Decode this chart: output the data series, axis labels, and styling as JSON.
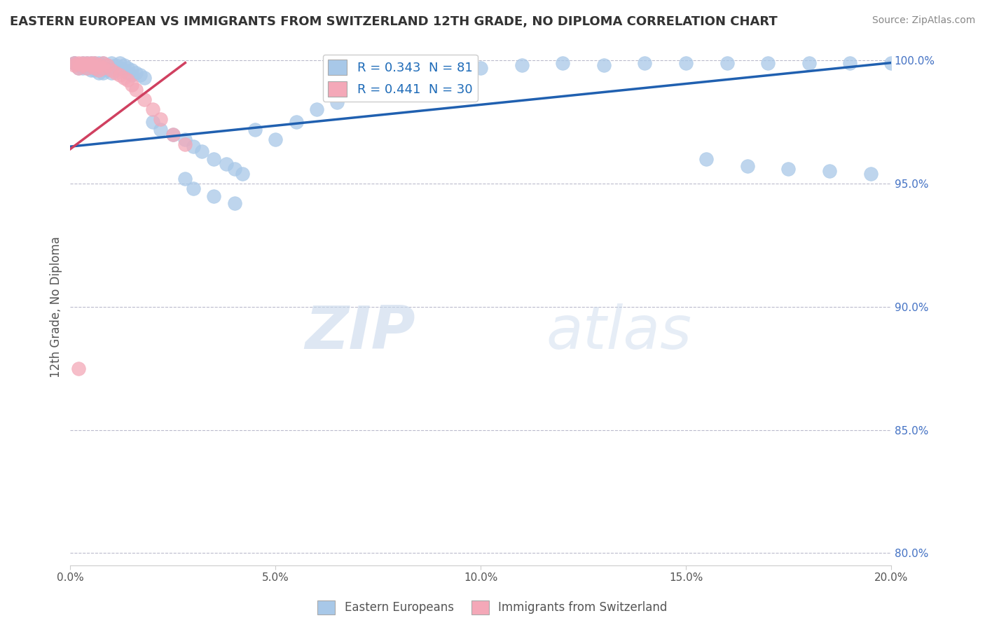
{
  "title": "EASTERN EUROPEAN VS IMMIGRANTS FROM SWITZERLAND 12TH GRADE, NO DIPLOMA CORRELATION CHART",
  "source": "Source: ZipAtlas.com",
  "ylabel_label": "12th Grade, No Diploma",
  "right_yticks": [
    100.0,
    95.0,
    90.0,
    85.0,
    80.0
  ],
  "xlim": [
    0.0,
    0.2
  ],
  "ylim": [
    0.795,
    1.005
  ],
  "legend_blue": "R = 0.343  N = 81",
  "legend_pink": "R = 0.441  N = 30",
  "blue_color": "#A8C8E8",
  "pink_color": "#F4A8B8",
  "blue_line_color": "#2060B0",
  "pink_line_color": "#D04060",
  "watermark_zip": "ZIP",
  "watermark_atlas": "atlas",
  "label_eastern": "Eastern Europeans",
  "label_swiss": "Immigrants from Switzerland",
  "blue_scatter_x": [
    0.001,
    0.001,
    0.002,
    0.002,
    0.003,
    0.003,
    0.003,
    0.004,
    0.004,
    0.004,
    0.005,
    0.005,
    0.005,
    0.006,
    0.006,
    0.006,
    0.007,
    0.007,
    0.007,
    0.008,
    0.008,
    0.008,
    0.009,
    0.009,
    0.01,
    0.01,
    0.01,
    0.011,
    0.011,
    0.012,
    0.012,
    0.013,
    0.013,
    0.014,
    0.014,
    0.015,
    0.015,
    0.016,
    0.017,
    0.018,
    0.02,
    0.022,
    0.025,
    0.028,
    0.03,
    0.032,
    0.035,
    0.038,
    0.04,
    0.042,
    0.045,
    0.05,
    0.055,
    0.06,
    0.065,
    0.07,
    0.075,
    0.08,
    0.085,
    0.09,
    0.095,
    0.1,
    0.11,
    0.12,
    0.13,
    0.14,
    0.15,
    0.16,
    0.17,
    0.18,
    0.19,
    0.2,
    0.155,
    0.165,
    0.175,
    0.185,
    0.195,
    0.028,
    0.03,
    0.035,
    0.04
  ],
  "blue_scatter_y": [
    0.999,
    0.999,
    0.997,
    0.998,
    0.999,
    0.998,
    0.997,
    0.999,
    0.998,
    0.997,
    0.999,
    0.998,
    0.996,
    0.999,
    0.998,
    0.996,
    0.999,
    0.997,
    0.995,
    0.999,
    0.997,
    0.995,
    0.998,
    0.996,
    0.999,
    0.997,
    0.995,
    0.998,
    0.996,
    0.999,
    0.997,
    0.998,
    0.996,
    0.997,
    0.995,
    0.996,
    0.994,
    0.995,
    0.994,
    0.993,
    0.975,
    0.972,
    0.97,
    0.968,
    0.965,
    0.963,
    0.96,
    0.958,
    0.956,
    0.954,
    0.972,
    0.968,
    0.975,
    0.98,
    0.983,
    0.988,
    0.99,
    0.992,
    0.994,
    0.995,
    0.996,
    0.997,
    0.998,
    0.999,
    0.998,
    0.999,
    0.999,
    0.999,
    0.999,
    0.999,
    0.999,
    0.999,
    0.96,
    0.957,
    0.956,
    0.955,
    0.954,
    0.952,
    0.948,
    0.945,
    0.942
  ],
  "pink_scatter_x": [
    0.001,
    0.001,
    0.002,
    0.002,
    0.003,
    0.003,
    0.004,
    0.004,
    0.005,
    0.005,
    0.006,
    0.006,
    0.007,
    0.007,
    0.008,
    0.008,
    0.009,
    0.01,
    0.011,
    0.012,
    0.013,
    0.014,
    0.015,
    0.016,
    0.018,
    0.02,
    0.022,
    0.025,
    0.028,
    0.002
  ],
  "pink_scatter_y": [
    0.999,
    0.998,
    0.999,
    0.997,
    0.999,
    0.998,
    0.999,
    0.997,
    0.999,
    0.998,
    0.999,
    0.997,
    0.998,
    0.996,
    0.999,
    0.997,
    0.998,
    0.996,
    0.995,
    0.994,
    0.993,
    0.992,
    0.99,
    0.988,
    0.984,
    0.98,
    0.976,
    0.97,
    0.966,
    0.875
  ],
  "blue_line_x": [
    0.0,
    0.2
  ],
  "blue_line_y": [
    0.965,
    0.999
  ],
  "pink_line_x": [
    0.0,
    0.028
  ],
  "pink_line_y": [
    0.964,
    0.999
  ]
}
